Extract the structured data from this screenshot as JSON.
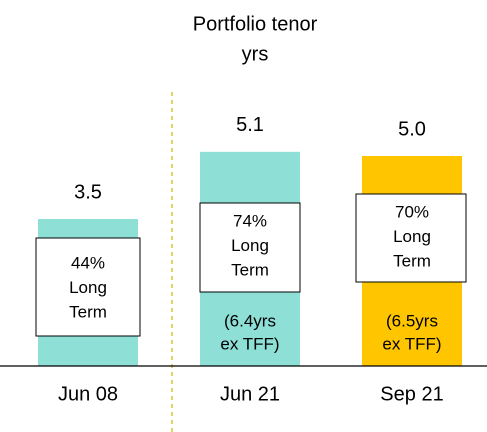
{
  "chart_data": {
    "type": "bar",
    "title": "Portfolio tenor",
    "subtitle": "yrs",
    "categories": [
      "Jun 08",
      "Jun 21",
      "Sep 21"
    ],
    "values": [
      3.5,
      5.1,
      5.0
    ],
    "value_labels": [
      "3.5",
      "5.1",
      "5.0"
    ],
    "colors": [
      "#8ee0d7",
      "#8ee0d7",
      "#ffc600"
    ],
    "box_labels": [
      [
        "44%",
        "Long",
        "Term"
      ],
      [
        "74%",
        "Long",
        "Term"
      ],
      [
        "70%",
        "Long",
        "Term"
      ]
    ],
    "notes": [
      null,
      [
        "(6.4yrs",
        "ex TFF)"
      ],
      [
        "(6.5yrs",
        "ex TFF)"
      ]
    ],
    "ylim": [
      0,
      6
    ]
  }
}
